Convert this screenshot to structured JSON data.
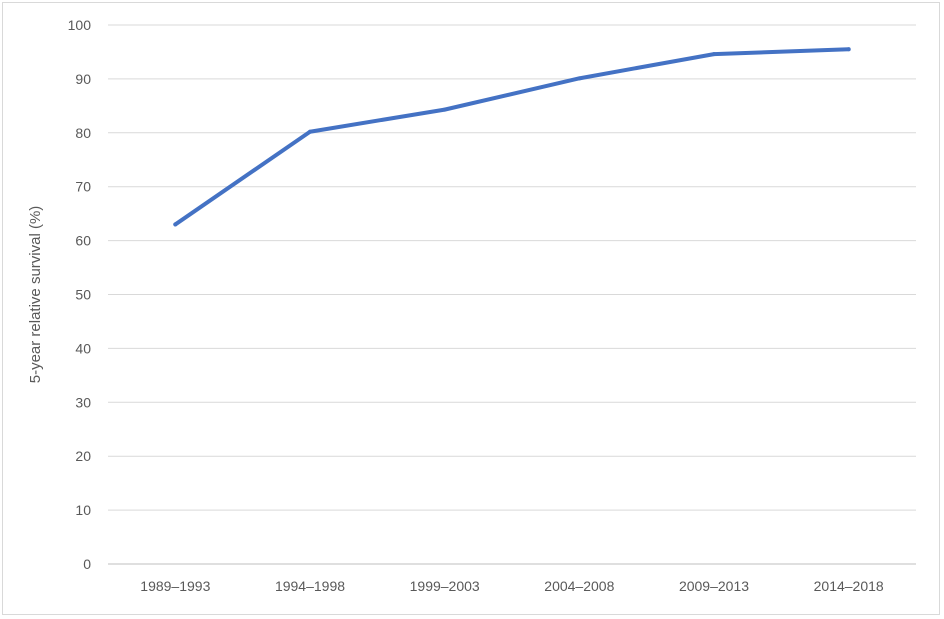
{
  "chart_data": {
    "type": "line",
    "categories": [
      "1989–1993",
      "1994–1998",
      "1999–2003",
      "2004–2008",
      "2009–2013",
      "2014–2018"
    ],
    "series": [
      {
        "values": [
          63,
          80.2,
          84.3,
          90.1,
          94.6,
          95.5
        ],
        "color": "#4472c4"
      }
    ],
    "title": "",
    "xlabel": "",
    "ylabel": "5-year relative survival (%)",
    "ylim": [
      0,
      100
    ],
    "yticks": [
      0,
      10,
      20,
      30,
      40,
      50,
      60,
      70,
      80,
      90,
      100
    ],
    "grid": "horizontal",
    "legend": "none"
  }
}
